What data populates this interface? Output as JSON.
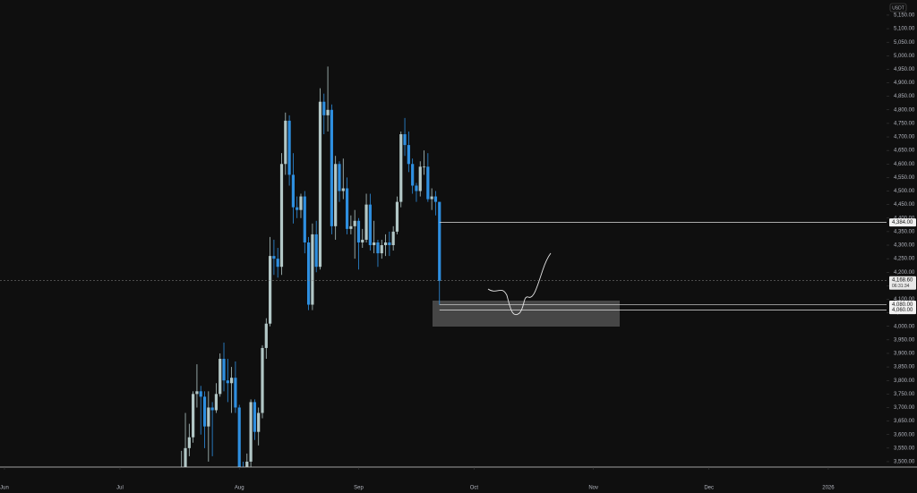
{
  "chart_data": {
    "type": "candlestick",
    "unit": "USDT",
    "xlim": [
      -1.16,
      229.14
    ],
    "ylim": [
      3480,
      5206
    ],
    "xticks": [
      {
        "value": 0,
        "label": "Jun"
      },
      {
        "value": 30,
        "label": "Jul"
      },
      {
        "value": 61,
        "label": "Aug"
      },
      {
        "value": 92,
        "label": "Sep"
      },
      {
        "value": 122,
        "label": "Oct"
      },
      {
        "value": 153,
        "label": "Nov"
      },
      {
        "value": 183,
        "label": "Dec"
      },
      {
        "value": 214,
        "label": "2026"
      }
    ],
    "yticks": [
      {
        "value": 3500,
        "label": "3,500.00"
      },
      {
        "value": 3550,
        "label": "3,550.00"
      },
      {
        "value": 3600,
        "label": "3,600.00"
      },
      {
        "value": 3650,
        "label": "3,650.00"
      },
      {
        "value": 3700,
        "label": "3,700.00"
      },
      {
        "value": 3750,
        "label": "3,750.00"
      },
      {
        "value": 3800,
        "label": "3,800.00"
      },
      {
        "value": 3850,
        "label": "3,850.00"
      },
      {
        "value": 3900,
        "label": "3,900.00"
      },
      {
        "value": 3950,
        "label": "3,950.00"
      },
      {
        "value": 4000,
        "label": "4,000.00"
      },
      {
        "value": 4050,
        "label": "4,050.00"
      },
      {
        "value": 4100,
        "label": "4,100.00"
      },
      {
        "value": 4150,
        "label": "4,150.00"
      },
      {
        "value": 4200,
        "label": "4,200.00"
      },
      {
        "value": 4250,
        "label": "4,250.00"
      },
      {
        "value": 4300,
        "label": "4,300.00"
      },
      {
        "value": 4350,
        "label": "4,350.00"
      },
      {
        "value": 4400,
        "label": "4,400.00"
      },
      {
        "value": 4450,
        "label": "4,450.00"
      },
      {
        "value": 4500,
        "label": "4,500.00"
      },
      {
        "value": 4550,
        "label": "4,550.00"
      },
      {
        "value": 4600,
        "label": "4,600.00"
      },
      {
        "value": 4650,
        "label": "4,650.00"
      },
      {
        "value": 4700,
        "label": "4,700.00"
      },
      {
        "value": 4750,
        "label": "4,750.00"
      },
      {
        "value": 4800,
        "label": "4,800.00"
      },
      {
        "value": 4850,
        "label": "4,850.00"
      },
      {
        "value": 4900,
        "label": "4,900.00"
      },
      {
        "value": 4950,
        "label": "4,950.00"
      },
      {
        "value": 5000,
        "label": "5,000.00"
      },
      {
        "value": 5050,
        "label": "5,050.00"
      },
      {
        "value": 5100,
        "label": "5,100.00"
      },
      {
        "value": 5150,
        "label": "5,150.00"
      }
    ],
    "up_color": "#b2c7c6",
    "down_color": "#2e8fe0",
    "x": [
      46,
      47,
      48,
      49,
      50,
      51,
      52,
      53,
      54,
      55,
      56,
      57,
      58,
      59,
      60,
      61,
      62,
      63,
      64,
      65,
      66,
      67,
      68,
      69,
      70,
      71,
      72,
      73,
      74,
      75,
      76,
      77,
      78,
      79,
      80,
      81,
      82,
      83,
      84,
      85,
      86,
      87,
      88,
      89,
      90,
      91,
      92,
      93,
      94,
      95,
      96,
      97,
      98,
      99,
      100,
      101,
      102,
      103,
      104,
      105,
      106,
      107,
      108,
      109,
      110,
      111,
      112,
      113
    ],
    "open": [
      3370,
      3480,
      3550,
      3590,
      3750,
      3760,
      3740,
      3630,
      3700,
      3690,
      3750,
      3880,
      3800,
      3790,
      3810,
      3700,
      3480,
      3390,
      3500,
      3720,
      3610,
      3680,
      3920,
      4010,
      4260,
      4250,
      4220,
      4600,
      4760,
      4560,
      4440,
      4430,
      4480,
      4310,
      4080,
      4340,
      4220,
      4830,
      4780,
      4800,
      4370,
      4600,
      4500,
      4510,
      4360,
      4370,
      4390,
      4310,
      4320,
      4450,
      4300,
      4310,
      4270,
      4300,
      4310,
      4300,
      4350,
      4460,
      4710,
      4670,
      4600,
      4520,
      4500,
      4590,
      4590,
      4470,
      4480,
      4460
    ],
    "high": [
      3540,
      3680,
      3640,
      3760,
      3860,
      3780,
      3760,
      3760,
      3720,
      3790,
      3900,
      3940,
      3880,
      3850,
      3870,
      3710,
      3500,
      3530,
      3730,
      3730,
      3700,
      3930,
      4030,
      4330,
      4320,
      4290,
      4640,
      4790,
      4780,
      4640,
      4480,
      4490,
      4500,
      4330,
      4380,
      4390,
      4880,
      4860,
      4960,
      4820,
      4630,
      4610,
      4620,
      4550,
      4410,
      4430,
      4400,
      4360,
      4490,
      4490,
      4390,
      4320,
      4320,
      4340,
      4350,
      4370,
      4480,
      4720,
      4770,
      4720,
      4620,
      4530,
      4610,
      4650,
      4640,
      4510,
      4500,
      4460
    ],
    "low": [
      3350,
      3450,
      3520,
      3570,
      3700,
      3600,
      3550,
      3500,
      3520,
      3680,
      3740,
      3760,
      3720,
      3680,
      3680,
      3450,
      3360,
      3360,
      3480,
      3580,
      3560,
      3660,
      3880,
      4000,
      4190,
      4180,
      4190,
      4560,
      4520,
      4380,
      4400,
      4400,
      4270,
      4060,
      4060,
      4200,
      4210,
      4710,
      4720,
      4340,
      4320,
      4460,
      4470,
      4340,
      4340,
      4250,
      4210,
      4290,
      4310,
      4280,
      4270,
      4220,
      4250,
      4260,
      4260,
      4280,
      4340,
      4440,
      4630,
      4570,
      4490,
      4460,
      4480,
      4560,
      4460,
      4430,
      4410,
      4080
    ],
    "close": [
      3480,
      3550,
      3590,
      3750,
      3760,
      3740,
      3630,
      3700,
      3690,
      3750,
      3880,
      3800,
      3790,
      3810,
      3700,
      3480,
      3390,
      3500,
      3720,
      3610,
      3680,
      3920,
      4010,
      4260,
      4250,
      4220,
      4600,
      4760,
      4560,
      4440,
      4430,
      4480,
      4310,
      4080,
      4340,
      4220,
      4830,
      4780,
      4800,
      4370,
      4600,
      4500,
      4510,
      4360,
      4370,
      4390,
      4310,
      4320,
      4450,
      4300,
      4310,
      4270,
      4300,
      4310,
      4300,
      4350,
      4460,
      4710,
      4670,
      4600,
      4520,
      4500,
      4590,
      4590,
      4470,
      4480,
      4460,
      4168.6
    ],
    "levels": [
      {
        "value": 4384,
        "label": "4,384.00"
      },
      {
        "value": 4080,
        "label": "4,080.00"
      },
      {
        "value": 4060,
        "label": "4,060.00"
      }
    ],
    "last_price": {
      "value": 4168.6,
      "label": "4,168.60",
      "countdown": "06:31:34"
    }
  }
}
